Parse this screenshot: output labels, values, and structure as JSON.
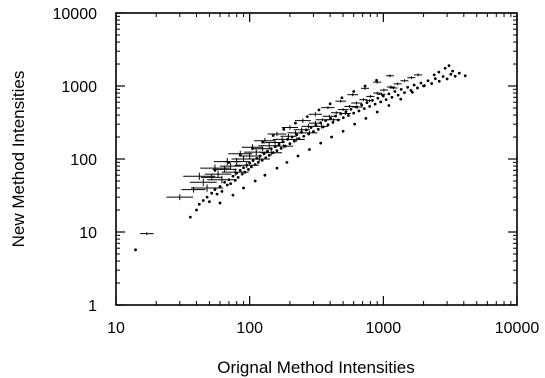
{
  "chart_data": {
    "type": "scatter",
    "title": "",
    "xlabel": "Orignal Method Intensities",
    "ylabel": "New Method Intensities",
    "x_scale": "log",
    "y_scale": "log",
    "xlim": [
      10,
      10000
    ],
    "ylim": [
      1,
      10000
    ],
    "x_ticks": [
      {
        "value": 10,
        "label": "10"
      },
      {
        "value": 100,
        "label": "100"
      },
      {
        "value": 1000,
        "label": "1000"
      },
      {
        "value": 10000,
        "label": "10000"
      }
    ],
    "y_ticks": [
      {
        "value": 1,
        "label": "1"
      },
      {
        "value": 10,
        "label": "10"
      },
      {
        "value": 100,
        "label": "100"
      },
      {
        "value": 1000,
        "label": "1000"
      },
      {
        "value": 10000,
        "label": "10000"
      }
    ],
    "grid": false,
    "legend": "none",
    "marker_color": "#000000",
    "series": [
      {
        "marker": "dot",
        "points": [
          [
            14,
            5.7
          ],
          [
            36,
            16
          ],
          [
            40,
            20
          ],
          [
            42,
            24
          ],
          [
            45,
            27
          ],
          [
            48,
            30
          ],
          [
            50,
            26
          ],
          [
            52,
            34
          ],
          [
            55,
            38
          ],
          [
            57,
            33
          ],
          [
            60,
            42
          ],
          [
            62,
            36
          ],
          [
            65,
            48
          ],
          [
            68,
            44
          ],
          [
            70,
            52
          ],
          [
            72,
            46
          ],
          [
            75,
            58
          ],
          [
            78,
            51
          ],
          [
            80,
            64
          ],
          [
            82,
            56
          ],
          [
            85,
            70
          ],
          [
            88,
            62
          ],
          [
            90,
            76
          ],
          [
            92,
            66
          ],
          [
            95,
            82
          ],
          [
            98,
            72
          ],
          [
            100,
            88
          ],
          [
            103,
            78
          ],
          [
            106,
            95
          ],
          [
            110,
            84
          ],
          [
            113,
            102
          ],
          [
            116,
            90
          ],
          [
            120,
            110
          ],
          [
            124,
            96
          ],
          [
            128,
            118
          ],
          [
            132,
            104
          ],
          [
            136,
            128
          ],
          [
            140,
            112
          ],
          [
            145,
            138
          ],
          [
            150,
            122
          ],
          [
            155,
            148
          ],
          [
            160,
            130
          ],
          [
            166,
            160
          ],
          [
            172,
            140
          ],
          [
            178,
            172
          ],
          [
            185,
            150
          ],
          [
            192,
            186
          ],
          [
            200,
            162
          ],
          [
            208,
            200
          ],
          [
            216,
            176
          ],
          [
            225,
            215
          ],
          [
            234,
            190
          ],
          [
            244,
            232
          ],
          [
            254,
            205
          ],
          [
            265,
            250
          ],
          [
            276,
            220
          ],
          [
            288,
            270
          ],
          [
            300,
            238
          ],
          [
            313,
            290
          ],
          [
            326,
            255
          ],
          [
            340,
            312
          ],
          [
            355,
            275
          ],
          [
            370,
            335
          ],
          [
            386,
            295
          ],
          [
            403,
            360
          ],
          [
            420,
            318
          ],
          [
            440,
            388
          ],
          [
            460,
            342
          ],
          [
            480,
            415
          ],
          [
            502,
            368
          ],
          [
            525,
            445
          ],
          [
            548,
            395
          ],
          [
            573,
            480
          ],
          [
            600,
            425
          ],
          [
            628,
            515
          ],
          [
            657,
            456
          ],
          [
            688,
            552
          ],
          [
            720,
            490
          ],
          [
            754,
            592
          ],
          [
            790,
            525
          ],
          [
            828,
            635
          ],
          [
            868,
            565
          ],
          [
            910,
            680
          ],
          [
            955,
            605
          ],
          [
            1000,
            730
          ],
          [
            1050,
            650
          ],
          [
            1100,
            780
          ],
          [
            1160,
            700
          ],
          [
            1220,
            840
          ],
          [
            1290,
            750
          ],
          [
            1360,
            900
          ],
          [
            1440,
            810
          ],
          [
            1520,
            960
          ],
          [
            1610,
            870
          ],
          [
            1700,
            1030
          ],
          [
            1800,
            940
          ],
          [
            1910,
            1100
          ],
          [
            2030,
            1010
          ],
          [
            2160,
            1180
          ],
          [
            2300,
            1080
          ],
          [
            2450,
            1260
          ],
          [
            2620,
            1160
          ],
          [
            2800,
            1350
          ],
          [
            3000,
            1250
          ],
          [
            3200,
            1450
          ],
          [
            3450,
            1360
          ],
          [
            3700,
            1500
          ],
          [
            4100,
            1380
          ],
          [
            2900,
            1750
          ],
          [
            3100,
            1900
          ],
          [
            3300,
            1600
          ],
          [
            2600,
            1550
          ],
          [
            2400,
            1420
          ],
          [
            60,
            25
          ],
          [
            75,
            32
          ],
          [
            90,
            40
          ],
          [
            110,
            50
          ],
          [
            130,
            60
          ],
          [
            160,
            75
          ],
          [
            190,
            90
          ],
          [
            230,
            110
          ],
          [
            280,
            135
          ],
          [
            340,
            165
          ],
          [
            410,
            200
          ],
          [
            500,
            240
          ],
          [
            610,
            300
          ],
          [
            740,
            360
          ],
          [
            900,
            440
          ],
          [
            1100,
            540
          ],
          [
            1350,
            660
          ],
          [
            1650,
            820
          ],
          [
            2000,
            1000
          ],
          [
            55,
            70
          ],
          [
            70,
            90
          ],
          [
            85,
            115
          ],
          [
            105,
            140
          ],
          [
            125,
            170
          ],
          [
            150,
            210
          ],
          [
            180,
            255
          ],
          [
            220,
            310
          ],
          [
            270,
            380
          ],
          [
            330,
            470
          ],
          [
            400,
            570
          ],
          [
            490,
            690
          ],
          [
            600,
            840
          ],
          [
            730,
            1000
          ],
          [
            890,
            1200
          ]
        ]
      },
      {
        "marker": "errorbar",
        "points": [
          [
            17,
            9.5,
            0.05,
            0.02
          ],
          [
            30,
            30,
            0.1,
            0.04
          ],
          [
            38,
            38,
            0.09,
            0.04
          ],
          [
            45,
            48,
            0.1,
            0.05
          ],
          [
            52,
            56,
            0.08,
            0.04
          ],
          [
            58,
            62,
            0.1,
            0.05
          ],
          [
            65,
            72,
            0.09,
            0.04
          ],
          [
            72,
            80,
            0.08,
            0.04
          ],
          [
            80,
            92,
            0.1,
            0.05
          ],
          [
            90,
            100,
            0.09,
            0.04
          ],
          [
            100,
            110,
            0.08,
            0.04
          ],
          [
            112,
            124,
            0.09,
            0.04
          ],
          [
            125,
            138,
            0.07,
            0.03
          ],
          [
            140,
            152,
            0.08,
            0.04
          ],
          [
            155,
            168,
            0.07,
            0.03
          ],
          [
            175,
            186,
            0.07,
            0.03
          ],
          [
            195,
            205,
            0.06,
            0.03
          ],
          [
            220,
            228,
            0.06,
            0.03
          ],
          [
            245,
            252,
            0.06,
            0.03
          ],
          [
            275,
            280,
            0.05,
            0.03
          ],
          [
            310,
            310,
            0.05,
            0.03
          ],
          [
            350,
            345,
            0.05,
            0.02
          ],
          [
            395,
            385,
            0.05,
            0.02
          ],
          [
            445,
            430,
            0.04,
            0.02
          ],
          [
            500,
            475,
            0.04,
            0.02
          ],
          [
            560,
            525,
            0.04,
            0.02
          ],
          [
            630,
            585,
            0.04,
            0.02
          ],
          [
            710,
            650,
            0.03,
            0.02
          ],
          [
            800,
            720,
            0.03,
            0.02
          ],
          [
            900,
            800,
            0.03,
            0.02
          ],
          [
            1010,
            880,
            0.03,
            0.02
          ],
          [
            1140,
            970,
            0.03,
            0.02
          ],
          [
            1280,
            1070,
            0.03,
            0.02
          ],
          [
            1440,
            1180,
            0.03,
            0.02
          ],
          [
            1620,
            1300,
            0.03,
            0.02
          ],
          [
            1820,
            1420,
            0.03,
            0.02
          ],
          [
            48,
            40,
            0.12,
            0.05
          ],
          [
            62,
            52,
            0.11,
            0.05
          ],
          [
            78,
            66,
            0.1,
            0.05
          ],
          [
            95,
            82,
            0.09,
            0.04
          ],
          [
            118,
            100,
            0.08,
            0.04
          ],
          [
            145,
            122,
            0.08,
            0.04
          ],
          [
            180,
            150,
            0.07,
            0.03
          ],
          [
            225,
            185,
            0.06,
            0.03
          ],
          [
            280,
            228,
            0.06,
            0.03
          ],
          [
            345,
            280,
            0.05,
            0.03
          ],
          [
            425,
            345,
            0.05,
            0.02
          ],
          [
            520,
            420,
            0.04,
            0.02
          ],
          [
            640,
            515,
            0.04,
            0.02
          ],
          [
            790,
            630,
            0.03,
            0.02
          ],
          [
            970,
            770,
            0.03,
            0.02
          ],
          [
            1190,
            940,
            0.03,
            0.02
          ],
          [
            42,
            58,
            0.12,
            0.05
          ],
          [
            55,
            75,
            0.11,
            0.05
          ],
          [
            68,
            92,
            0.1,
            0.05
          ],
          [
            85,
            118,
            0.09,
            0.04
          ],
          [
            105,
            145,
            0.08,
            0.04
          ],
          [
            130,
            178,
            0.08,
            0.04
          ],
          [
            160,
            220,
            0.07,
            0.03
          ],
          [
            200,
            270,
            0.06,
            0.03
          ],
          [
            250,
            335,
            0.06,
            0.03
          ],
          [
            310,
            410,
            0.05,
            0.03
          ],
          [
            385,
            505,
            0.05,
            0.02
          ],
          [
            480,
            620,
            0.04,
            0.02
          ],
          [
            590,
            760,
            0.04,
            0.02
          ],
          [
            730,
            930,
            0.03,
            0.02
          ],
          [
            900,
            1130,
            0.03,
            0.02
          ],
          [
            1120,
            1380,
            0.03,
            0.02
          ]
        ]
      }
    ]
  }
}
